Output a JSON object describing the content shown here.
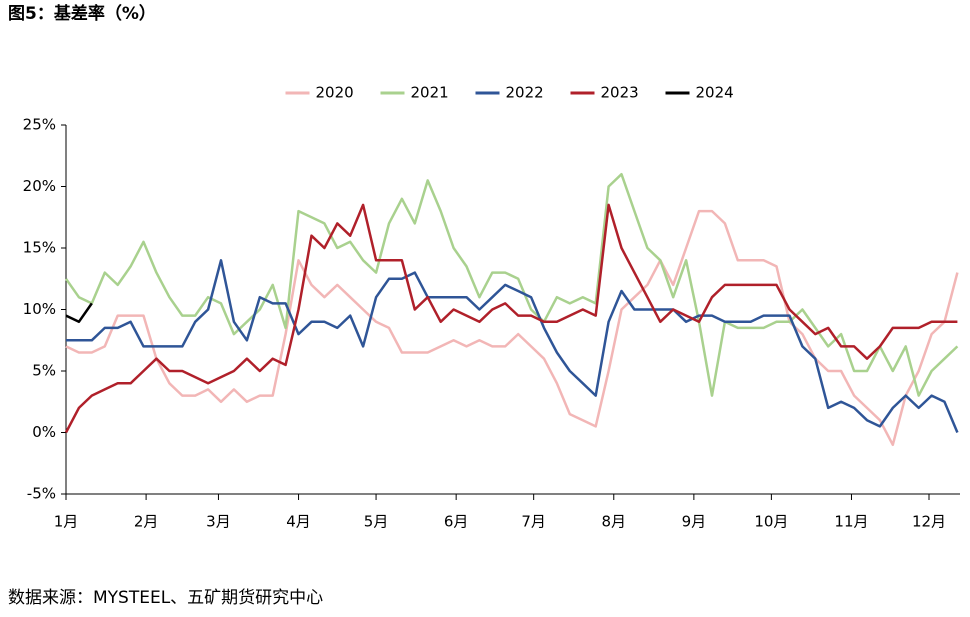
{
  "title": "图5：基差率（%）",
  "source": "数据来源：MYSTEEL、五矿期货研究中心",
  "chart_data": {
    "type": "line",
    "x": [
      0,
      5,
      10,
      15,
      20,
      25,
      30,
      35,
      40,
      45,
      50,
      55,
      60,
      65,
      70,
      75,
      80,
      85,
      90,
      95,
      100,
      105,
      110,
      115,
      120,
      125,
      130,
      135,
      140,
      145,
      150,
      155,
      160,
      165,
      170,
      175,
      180,
      185,
      190,
      195,
      200,
      205,
      210,
      215,
      220,
      225,
      230,
      235,
      240,
      245,
      250,
      255,
      260,
      265,
      270,
      275,
      280,
      285,
      290,
      295,
      300,
      305,
      310,
      315,
      320,
      325,
      330,
      335,
      340,
      345
    ],
    "xlim": [
      0,
      346
    ],
    "xticks": [
      {
        "value": 0,
        "label": "1月"
      },
      {
        "value": 31,
        "label": "2月"
      },
      {
        "value": 59,
        "label": "3月"
      },
      {
        "value": 90,
        "label": "4月"
      },
      {
        "value": 120,
        "label": "5月"
      },
      {
        "value": 151,
        "label": "6月"
      },
      {
        "value": 181,
        "label": "7月"
      },
      {
        "value": 212,
        "label": "8月"
      },
      {
        "value": 243,
        "label": "9月"
      },
      {
        "value": 273,
        "label": "10月"
      },
      {
        "value": 304,
        "label": "11月"
      },
      {
        "value": 334,
        "label": "12月"
      }
    ],
    "ylim": [
      -5,
      25
    ],
    "yticks": [
      {
        "value": -5,
        "label": "-5%"
      },
      {
        "value": 0,
        "label": "0%"
      },
      {
        "value": 5,
        "label": "5%"
      },
      {
        "value": 10,
        "label": "10%"
      },
      {
        "value": 15,
        "label": "15%"
      },
      {
        "value": 20,
        "label": "20%"
      },
      {
        "value": 25,
        "label": "25%"
      }
    ],
    "legend": "top",
    "series": [
      {
        "name": "2020",
        "color": "#f2b6b6",
        "values": [
          7,
          6.5,
          6.5,
          7,
          9.5,
          9.5,
          9.5,
          6,
          4,
          3,
          3,
          3.5,
          2.5,
          3.5,
          2.5,
          3,
          3,
          8,
          14,
          12,
          11,
          12,
          11,
          10,
          9,
          8.5,
          6.5,
          6.5,
          6.5,
          7,
          7.5,
          7,
          7.5,
          7,
          7,
          8,
          7,
          6,
          4,
          1.5,
          1,
          0.5,
          5,
          10,
          11,
          12,
          14,
          12,
          15,
          18,
          18,
          17,
          14,
          14,
          14,
          13.5,
          9,
          8,
          6,
          5,
          5,
          3,
          2,
          1,
          -1,
          3,
          5,
          8,
          9,
          13
        ]
      },
      {
        "name": "2021",
        "color": "#a9d18e",
        "values": [
          12.5,
          11,
          10.5,
          13,
          12,
          13.5,
          15.5,
          13,
          11,
          9.5,
          9.5,
          11,
          10.5,
          8,
          9,
          10,
          12,
          8.5,
          18,
          17.5,
          17,
          15,
          15.5,
          14,
          13,
          17,
          19,
          17,
          20.5,
          18,
          15,
          13.5,
          11,
          13,
          13,
          12.5,
          10,
          9,
          11,
          10.5,
          11,
          10.5,
          20,
          21,
          18,
          15,
          14,
          11,
          14,
          9,
          3,
          9,
          8.5,
          8.5,
          8.5,
          9,
          9,
          10,
          8.5,
          7,
          8,
          5,
          5,
          7,
          5,
          7,
          3,
          5,
          6,
          7
        ]
      },
      {
        "name": "2022",
        "color": "#2f5597",
        "values": [
          7.5,
          7.5,
          7.5,
          8.5,
          8.5,
          9,
          7,
          7,
          7,
          7,
          9,
          10,
          14,
          9,
          7.5,
          11,
          10.5,
          10.5,
          8,
          9,
          9,
          8.5,
          9.5,
          7,
          11,
          12.5,
          12.5,
          13,
          11,
          11,
          11,
          11,
          10,
          11,
          12,
          11.5,
          11,
          8.5,
          6.5,
          5,
          4,
          3,
          9,
          11.5,
          10,
          10,
          10,
          10,
          9,
          9.5,
          9.5,
          9,
          9,
          9,
          9.5,
          9.5,
          9.5,
          7,
          6,
          2,
          2.5,
          2,
          1,
          0.5,
          2,
          3,
          2,
          3,
          2.5,
          0
        ]
      },
      {
        "name": "2023",
        "color": "#b0202a",
        "values": [
          0,
          2,
          3,
          3.5,
          4,
          4,
          5,
          6,
          5,
          5,
          4.5,
          4,
          4.5,
          5,
          6,
          5,
          6,
          5.5,
          10,
          16,
          15,
          17,
          16,
          18.5,
          14,
          14,
          14,
          10,
          11,
          9,
          10,
          9.5,
          9,
          10,
          10.5,
          9.5,
          9.5,
          9,
          9,
          9.5,
          10,
          9.5,
          18.5,
          15,
          13,
          11,
          9,
          10,
          9.5,
          9,
          11,
          12,
          12,
          12,
          12,
          12,
          10,
          9,
          8,
          8.5,
          7,
          7,
          6,
          7,
          8.5,
          8.5,
          8.5,
          9,
          9,
          9
        ]
      },
      {
        "name": "2024",
        "color": "#000000",
        "values": [
          9.5,
          9,
          10.5,
          null,
          null,
          null,
          null,
          null,
          null,
          null,
          null,
          null,
          null,
          null,
          null,
          null,
          null,
          null,
          null,
          null,
          null,
          null,
          null,
          null,
          null,
          null,
          null,
          null,
          null,
          null,
          null,
          null,
          null,
          null,
          null,
          null,
          null,
          null,
          null,
          null,
          null,
          null,
          null,
          null,
          null,
          null,
          null,
          null,
          null,
          null,
          null,
          null,
          null,
          null,
          null,
          null,
          null,
          null,
          null,
          null,
          null,
          null,
          null,
          null,
          null,
          null,
          null,
          null,
          null,
          null
        ]
      }
    ]
  }
}
